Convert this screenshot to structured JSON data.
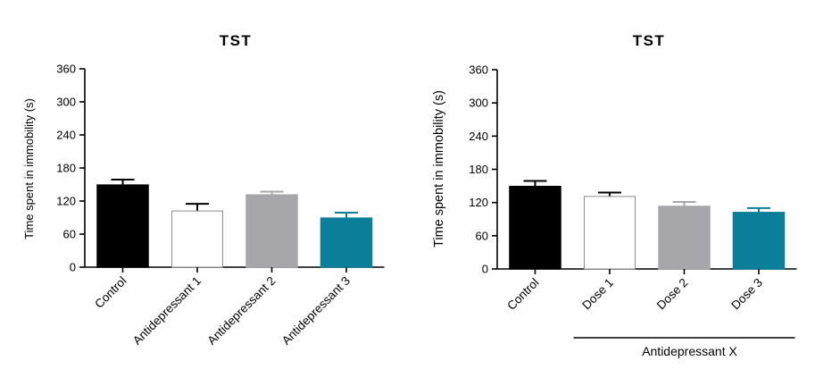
{
  "chart_data": [
    {
      "type": "bar",
      "title": "TST",
      "xlabel": "",
      "ylabel": "Time spent in immobility (s)",
      "ylim": [
        0,
        360
      ],
      "yticks": [
        0,
        60,
        120,
        180,
        240,
        300,
        360
      ],
      "categories": [
        "Control",
        "Antidepressant 1",
        "Antidepressant 2",
        "Antidepressant 3"
      ],
      "values": [
        149,
        102,
        131,
        89
      ],
      "errors": [
        10,
        13,
        6,
        10
      ],
      "colors": [
        "#000000",
        "#ffffff",
        "#a7a6aa",
        "#0b7f99"
      ],
      "grid": false
    },
    {
      "type": "bar",
      "title": "TST",
      "xlabel": "",
      "ylabel": "Time spent in immobility (s)",
      "ylim": [
        0,
        360
      ],
      "yticks": [
        0,
        60,
        120,
        180,
        240,
        300,
        360
      ],
      "categories": [
        "Control",
        "Dose 1",
        "Dose 2",
        "Dose 3"
      ],
      "values": [
        149,
        131,
        113,
        102
      ],
      "errors": [
        10,
        7,
        8,
        8
      ],
      "colors": [
        "#000000",
        "#ffffff",
        "#a7a6aa",
        "#0b7f99"
      ],
      "group_label": "Antidepressant X",
      "grid": false
    }
  ]
}
